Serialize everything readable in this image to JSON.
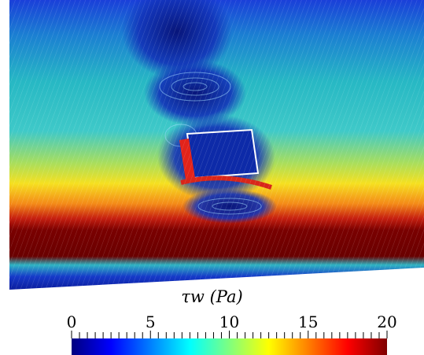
{
  "colorbar": {
    "title": "τw (Pa)",
    "min": 0,
    "max": 20,
    "tick_labels": [
      "0",
      "5",
      "10",
      "15",
      "20"
    ],
    "colormap": "jet",
    "colors": [
      "#00007f",
      "#0000ff",
      "#007fff",
      "#00ffff",
      "#7fff7f",
      "#ffff00",
      "#ff7f00",
      "#ff0000",
      "#7f0000"
    ]
  }
}
